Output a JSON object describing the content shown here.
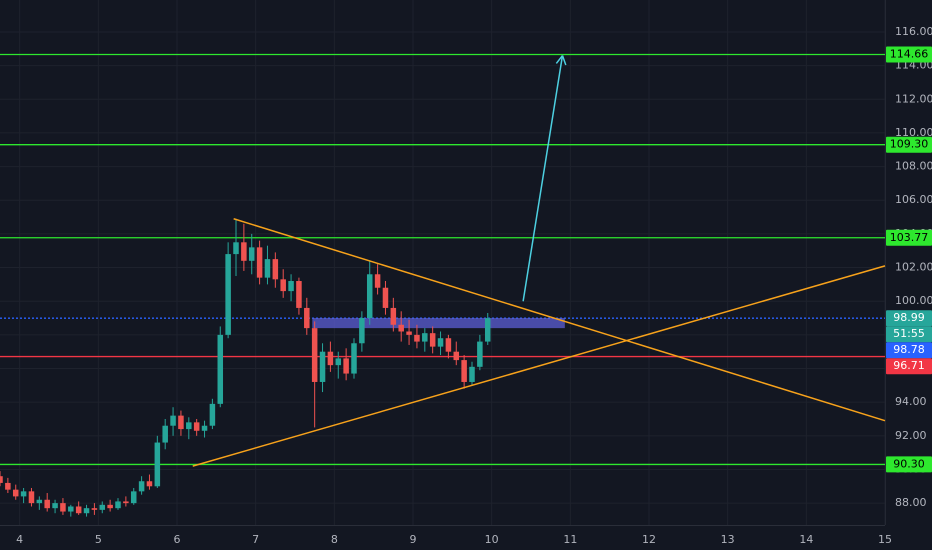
{
  "chart_data": {
    "type": "candlestick",
    "xlim": [
      3.75,
      15.0
    ],
    "ylim": [
      86.7,
      117.9
    ],
    "xticks": [
      4,
      5,
      6,
      7,
      8,
      9,
      10,
      11,
      12,
      13,
      14,
      15
    ],
    "yticks": [
      {
        "value": 88,
        "label": "88.00"
      },
      {
        "value": 90,
        "label": "90.00"
      },
      {
        "value": 92,
        "label": "92.00"
      },
      {
        "value": 94,
        "label": "94.00"
      },
      {
        "value": 96,
        "label": "96.00"
      },
      {
        "value": 98,
        "label": "98.00"
      },
      {
        "value": 100,
        "label": "100.00"
      },
      {
        "value": 102,
        "label": "102.00"
      },
      {
        "value": 104,
        "label": "104.00"
      },
      {
        "value": 106,
        "label": "106.00"
      },
      {
        "value": 108,
        "label": "108.00"
      },
      {
        "value": 110,
        "label": "110.00"
      },
      {
        "value": 112,
        "label": "112.00"
      },
      {
        "value": 114,
        "label": "114.00"
      },
      {
        "value": 116,
        "label": "116.00"
      }
    ],
    "grid": true,
    "up_color": "#26a69a",
    "down_color": "#ef5350",
    "x": [
      3.75,
      3.85,
      3.95,
      4.05,
      4.15,
      4.25,
      4.35,
      4.45,
      4.55,
      4.65,
      4.75,
      4.85,
      4.95,
      5.05,
      5.15,
      5.25,
      5.35,
      5.45,
      5.55,
      5.65,
      5.75,
      5.85,
      5.95,
      6.05,
      6.15,
      6.25,
      6.35,
      6.45,
      6.55,
      6.65,
      6.75,
      6.85,
      6.95,
      7.05,
      7.15,
      7.25,
      7.35,
      7.45,
      7.55,
      7.65,
      7.75,
      7.85,
      7.95,
      8.05,
      8.15,
      8.25,
      8.35,
      8.45,
      8.55,
      8.65,
      8.75,
      8.85,
      8.95,
      9.05,
      9.15,
      9.25,
      9.35,
      9.45,
      9.55,
      9.65,
      9.75,
      9.85,
      9.95
    ],
    "open": [
      89.6,
      89.2,
      88.8,
      88.4,
      88.7,
      88.0,
      88.2,
      87.7,
      88.0,
      87.5,
      87.8,
      87.4,
      87.7,
      87.6,
      87.9,
      87.7,
      88.1,
      88.0,
      88.7,
      89.3,
      89.0,
      91.6,
      92.6,
      93.2,
      92.4,
      92.8,
      92.3,
      92.6,
      93.9,
      98.0,
      102.8,
      103.5,
      102.4,
      103.2,
      101.4,
      102.5,
      101.3,
      100.6,
      101.2,
      99.6,
      98.4,
      95.2,
      97.0,
      96.2,
      96.6,
      95.7,
      97.5,
      99.0,
      101.6,
      100.8,
      99.6,
      98.6,
      98.2,
      98.0,
      97.6,
      98.1,
      97.3,
      97.8,
      97.0,
      96.5,
      95.2,
      96.1,
      97.6
    ],
    "high": [
      89.9,
      89.5,
      89.1,
      88.9,
      88.9,
      88.4,
      88.6,
      88.2,
      88.3,
      87.9,
      88.1,
      87.9,
      88.0,
      88.1,
      88.2,
      88.3,
      88.4,
      88.9,
      89.6,
      89.7,
      92.0,
      93.0,
      93.7,
      93.5,
      93.1,
      93.0,
      92.9,
      94.2,
      98.5,
      103.5,
      104.9,
      104.6,
      104.0,
      103.6,
      103.3,
      102.9,
      101.9,
      101.6,
      101.4,
      100.2,
      98.8,
      97.5,
      97.6,
      97.0,
      97.2,
      97.8,
      99.4,
      102.4,
      102.2,
      101.2,
      100.2,
      99.4,
      98.9,
      98.6,
      98.4,
      98.5,
      98.2,
      98.0,
      97.6,
      96.8,
      96.4,
      98.0,
      99.3
    ],
    "low": [
      89.0,
      88.6,
      88.2,
      88.0,
      87.8,
      87.6,
      87.5,
      87.4,
      87.3,
      87.2,
      87.3,
      87.2,
      87.3,
      87.4,
      87.5,
      87.6,
      87.8,
      87.9,
      88.5,
      88.8,
      88.9,
      91.2,
      92.0,
      92.0,
      91.8,
      92.0,
      91.9,
      92.4,
      93.7,
      97.8,
      101.5,
      101.8,
      101.6,
      101.0,
      101.0,
      100.8,
      100.2,
      100.0,
      99.2,
      98.0,
      92.5,
      94.6,
      95.8,
      95.4,
      95.3,
      95.4,
      97.0,
      98.6,
      100.4,
      99.2,
      98.2,
      97.6,
      97.4,
      97.2,
      97.0,
      96.9,
      96.8,
      96.6,
      96.2,
      94.8,
      95.0,
      95.9,
      97.4
    ],
    "close": [
      89.2,
      88.8,
      88.4,
      88.7,
      88.0,
      88.2,
      87.7,
      88.0,
      87.5,
      87.8,
      87.4,
      87.7,
      87.6,
      87.9,
      87.7,
      88.1,
      88.0,
      88.7,
      89.3,
      89.0,
      91.6,
      92.6,
      93.2,
      92.4,
      92.8,
      92.3,
      92.6,
      93.9,
      98.0,
      102.8,
      103.5,
      102.4,
      103.2,
      101.4,
      102.5,
      101.3,
      100.6,
      101.2,
      99.6,
      98.4,
      95.2,
      97.0,
      96.2,
      96.6,
      95.7,
      97.5,
      99.0,
      101.6,
      100.8,
      99.6,
      98.6,
      98.2,
      98.0,
      97.6,
      98.1,
      97.3,
      97.8,
      97.0,
      96.5,
      95.2,
      96.1,
      97.6,
      98.99
    ],
    "hlines": [
      {
        "value": 114.66,
        "label": "114.66",
        "color": "#2ee82e"
      },
      {
        "value": 109.3,
        "label": "109.30",
        "color": "#2ee82e"
      },
      {
        "value": 103.77,
        "label": "103.77",
        "color": "#2ee82e"
      },
      {
        "value": 98.99,
        "label": "98.99",
        "color": "#26a69a",
        "dashed": true,
        "line_color": "#2962ff"
      },
      {
        "value": 96.71,
        "label": "96.71",
        "color": "#f23645"
      },
      {
        "value": 90.3,
        "label": "90.30",
        "color": "#2ee82e"
      }
    ],
    "extra_tags": [
      {
        "label": "51:55",
        "color": "#26a69a"
      },
      {
        "value": 98.78,
        "label": "98.78",
        "color": "#2962ff"
      }
    ],
    "trendlines": [
      {
        "x": [
          6.72,
          15.0
        ],
        "y": [
          104.9,
          92.9
        ],
        "color": "#f7a21b"
      },
      {
        "x": [
          6.2,
          15.0
        ],
        "y": [
          90.2,
          102.1
        ],
        "color": "#f7a21b"
      }
    ],
    "arrow": {
      "x": [
        10.4,
        10.9
      ],
      "y": [
        100.0,
        114.6
      ],
      "color": "#4dd0e1"
    },
    "zone": {
      "x": [
        7.72,
        10.93
      ],
      "y": [
        98.4,
        99.0
      ],
      "color": "#5c5fd6"
    }
  }
}
